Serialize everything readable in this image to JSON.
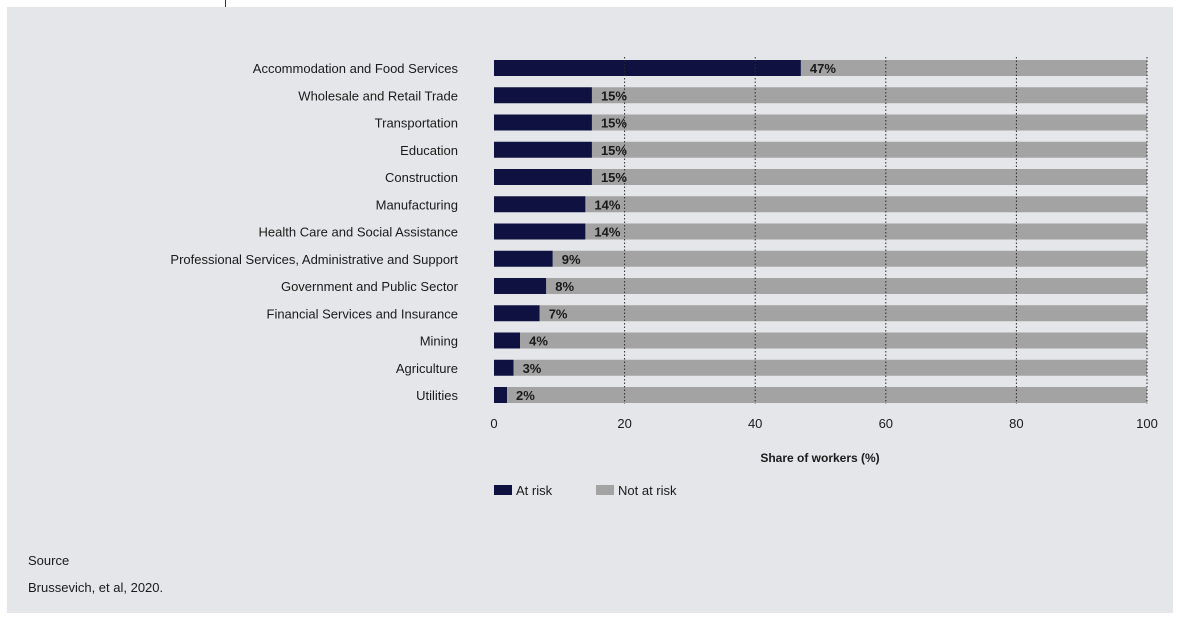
{
  "colors": {
    "at_risk": "#0f1241",
    "not_at_risk": "#a3a3a3",
    "gridline": "#2a2a2a"
  },
  "chart_data": {
    "type": "bar",
    "orientation": "horizontal",
    "stacked": true,
    "categories": [
      "Accommodation and Food Services",
      "Wholesale and Retail Trade",
      "Transportation",
      "Education",
      "Construction",
      "Manufacturing",
      "Health Care and Social Assistance",
      "Professional Services, Administrative and Support",
      "Government and Public Sector",
      "Financial Services and Insurance",
      "Mining",
      "Agriculture",
      "Utilities"
    ],
    "series": [
      {
        "name": "At risk",
        "values": [
          47,
          15,
          15,
          15,
          15,
          14,
          14,
          9,
          8,
          7,
          4,
          3,
          2
        ]
      },
      {
        "name": "Not at risk",
        "values": [
          53,
          85,
          85,
          85,
          85,
          86,
          86,
          91,
          92,
          93,
          96,
          97,
          98
        ]
      }
    ],
    "data_labels": [
      "47%",
      "15%",
      "15%",
      "15%",
      "15%",
      "14%",
      "14%",
      "9%",
      "8%",
      "7%",
      "4%",
      "3%",
      "2%"
    ],
    "xlabel": "Share of workers (%)",
    "ylabel": "",
    "xlim": [
      0,
      100
    ],
    "xticks": [
      0,
      20,
      40,
      60,
      80,
      100
    ],
    "grid": "vertical dotted",
    "legend": "bottom"
  },
  "source": {
    "title": "Source",
    "text": "Brussevich, et al, 2020."
  }
}
